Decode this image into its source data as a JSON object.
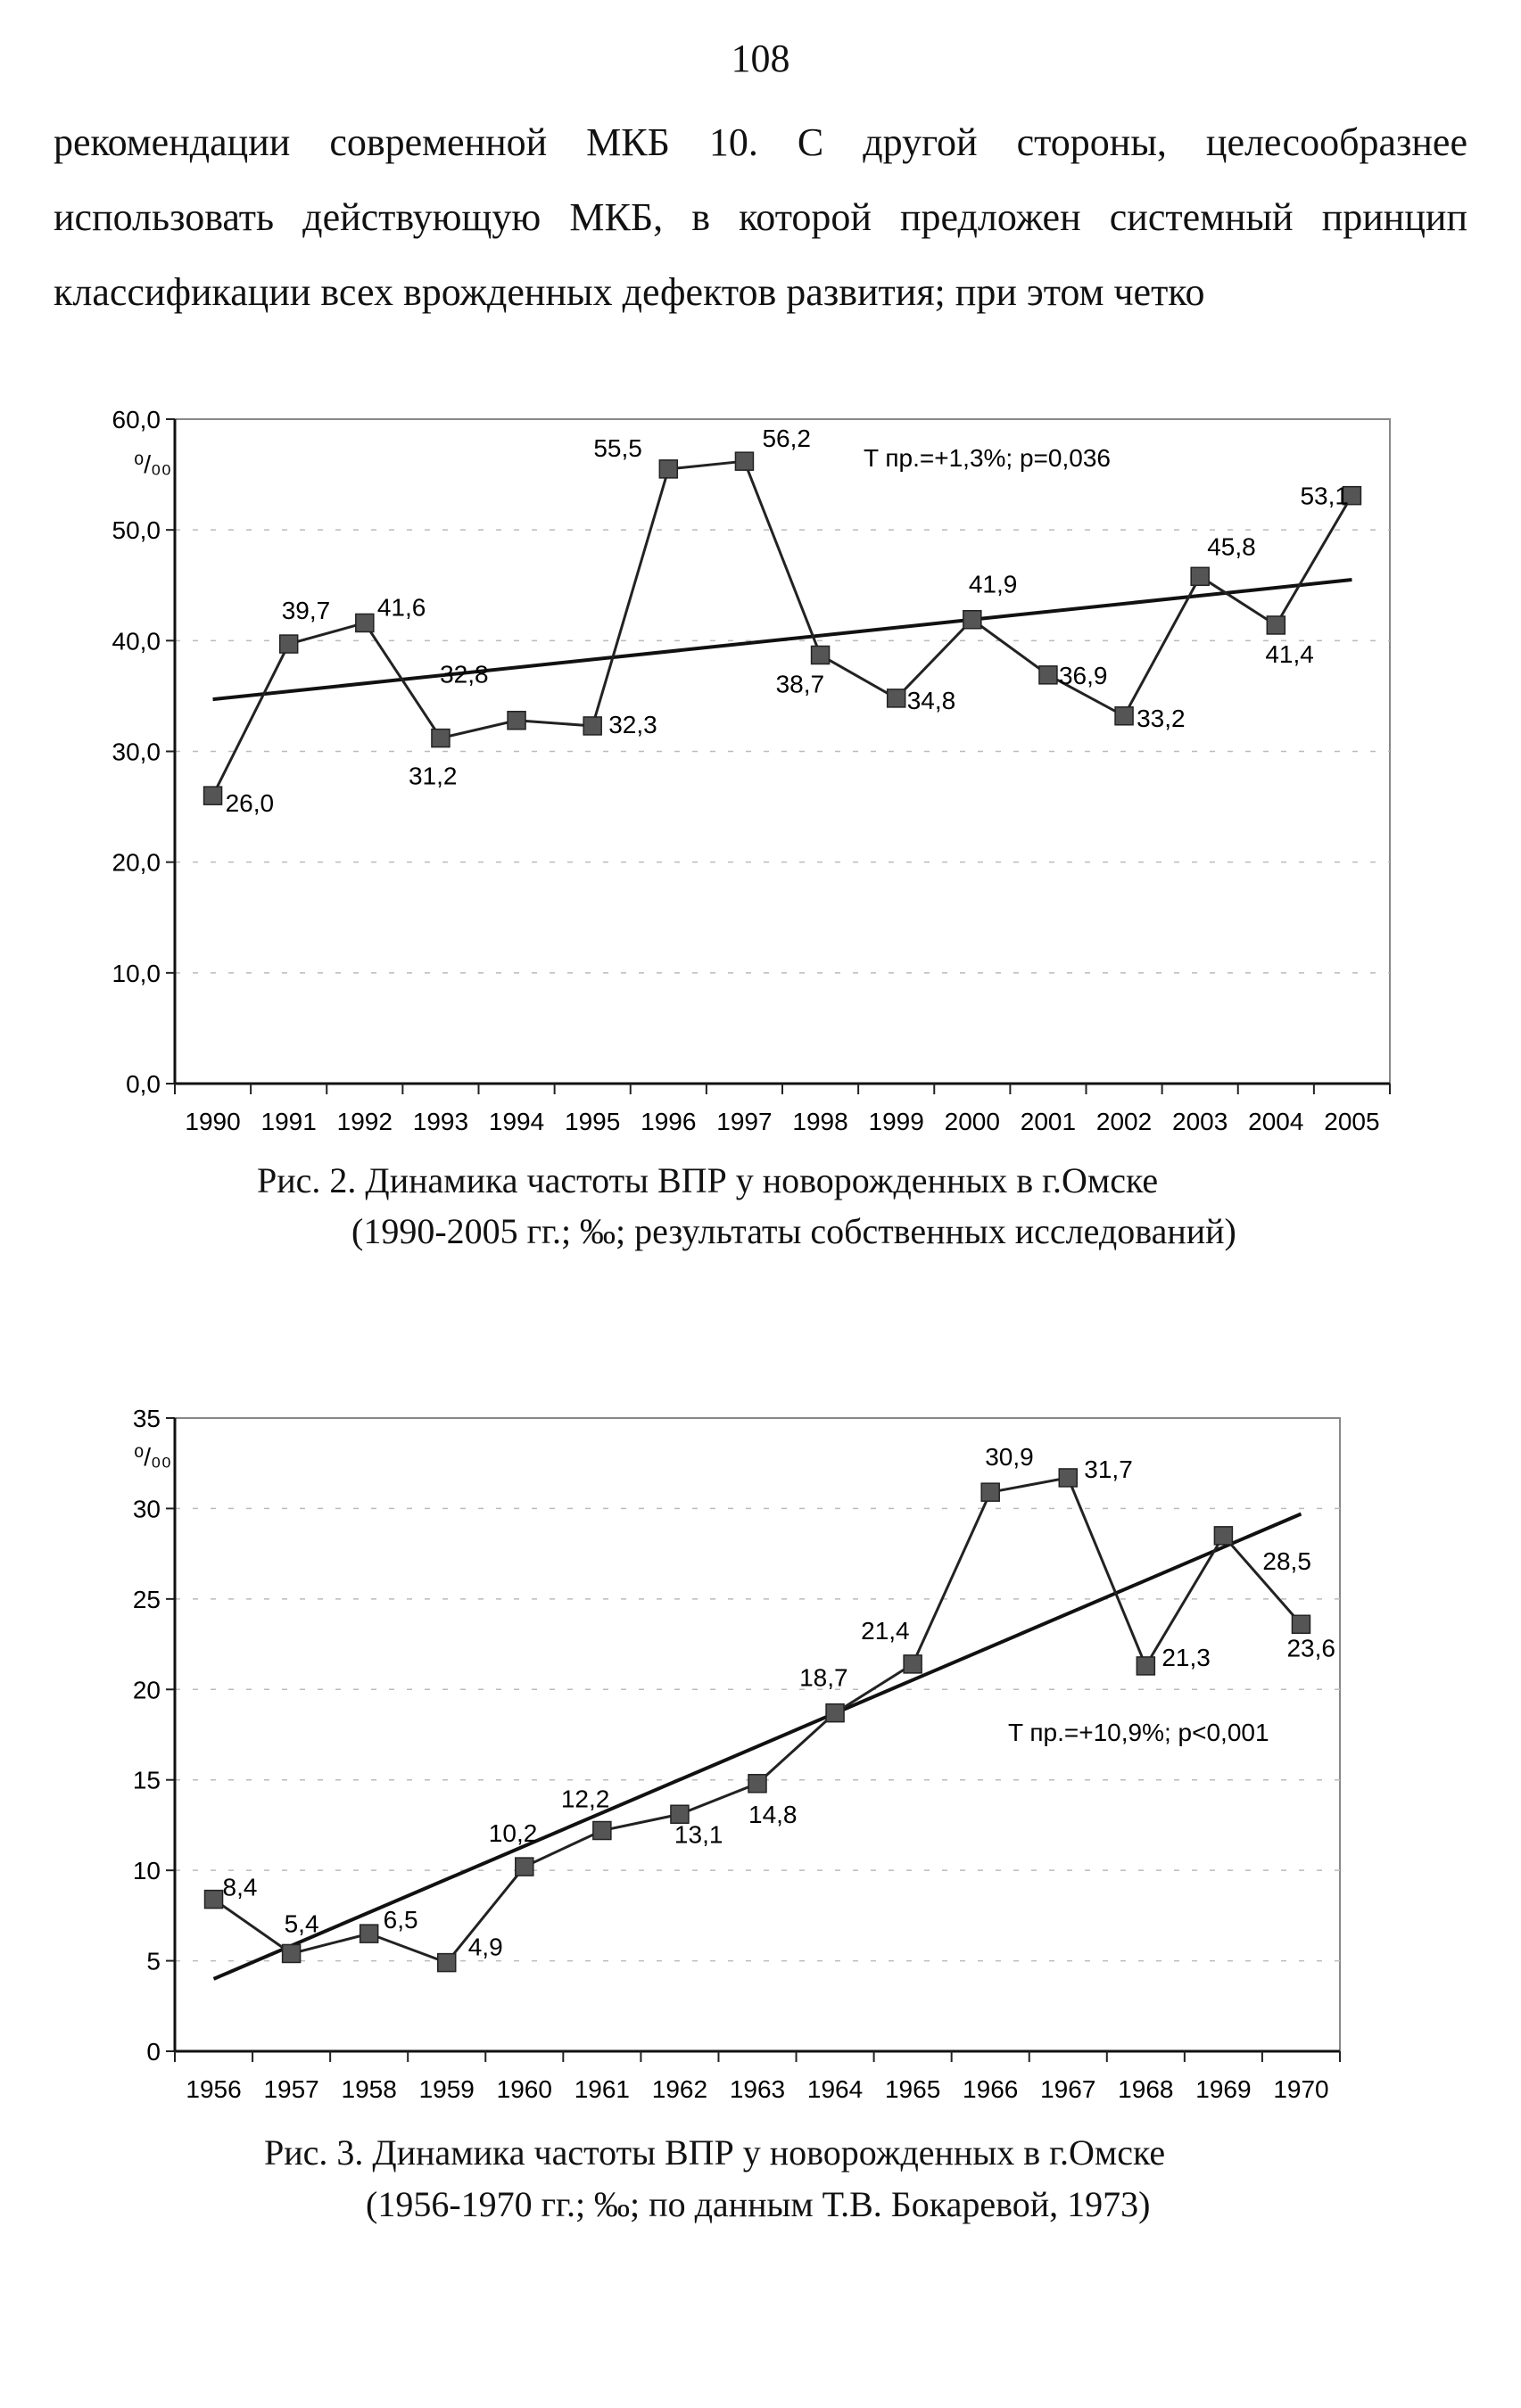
{
  "page": {
    "number": "108",
    "text_lines": [
      "рекомендации современной МКБ 10. С другой стороны, целесообразнее",
      "использовать действующую МКБ, в которой предложен системный принцип",
      "классификации всех врожденных дефектов развития; при этом четко"
    ]
  },
  "figures": [
    {
      "caption_line1": "Рис. 2. Динамика частоты ВПР у новорожденных в г.Омске",
      "caption_line2": "(1990-2005 гг.; ‰; результаты собственных исследований)"
    },
    {
      "caption_line1": "Рис. 3. Динамика частоты ВПР у новорожденных в г.Омске",
      "caption_line2": "(1956-1970 гг.; ‰; по данным Т.В. Бокаревой, 1973)"
    }
  ],
  "chart_data": [
    {
      "type": "line",
      "title": "",
      "ylabel": "⁰/₀₀",
      "ylim": [
        0,
        60
      ],
      "yticks": [
        0,
        10,
        20,
        30,
        40,
        50,
        60
      ],
      "ytick_labels": [
        "0,0",
        "10,0",
        "20,0",
        "30,0",
        "40,0",
        "50,0",
        "60,0"
      ],
      "x": [
        "1990",
        "1991",
        "1992",
        "1993",
        "1994",
        "1995",
        "1996",
        "1997",
        "1998",
        "1999",
        "2000",
        "2001",
        "2002",
        "2003",
        "2004",
        "2005"
      ],
      "series": [
        {
          "values": [
            26.0,
            39.7,
            41.6,
            31.2,
            32.8,
            32.3,
            55.5,
            56.2,
            38.7,
            34.8,
            41.9,
            36.9,
            33.2,
            45.8,
            41.4,
            53.1
          ],
          "labels": [
            "26,0",
            "39,7",
            "41,6",
            "31,2",
            "32,8",
            "32,3",
            "55,5",
            "56,2",
            "38,7",
            "34,8",
            "41,9",
            "36,9",
            "33,2",
            "45,8",
            "41,4",
            "53,1"
          ],
          "color": "#222222",
          "marker_color": "#555555"
        }
      ],
      "trend": {
        "start": 34.7,
        "end": 45.5,
        "color": "#111111"
      },
      "annotation": "T пр.=+1,3%; p=0,036",
      "grid": "dashed-horizontal"
    },
    {
      "type": "line",
      "title": "",
      "ylabel": "⁰/₀₀",
      "ylim": [
        0,
        35
      ],
      "yticks": [
        0,
        5,
        10,
        15,
        20,
        25,
        30,
        35
      ],
      "ytick_labels": [
        "0",
        "5",
        "10",
        "15",
        "20",
        "25",
        "30",
        "35"
      ],
      "x": [
        "1956",
        "1957",
        "1958",
        "1959",
        "1960",
        "1961",
        "1962",
        "1963",
        "1964",
        "1965",
        "1966",
        "1967",
        "1968",
        "1969",
        "1970"
      ],
      "series": [
        {
          "values": [
            8.4,
            5.4,
            6.5,
            4.9,
            10.2,
            12.2,
            13.1,
            14.8,
            18.7,
            21.4,
            30.9,
            31.7,
            21.3,
            28.5,
            23.6
          ],
          "labels": [
            "8,4",
            "5,4",
            "6,5",
            "4,9",
            "10,2",
            "12,2",
            "13,1",
            "14,8",
            "18,7",
            "21,4",
            "30,9",
            "31,7",
            "21,3",
            "28,5",
            "23,6"
          ],
          "color": "#222222",
          "marker_color": "#555555"
        }
      ],
      "trend": {
        "start": 4.0,
        "end": 29.7,
        "color": "#111111"
      },
      "annotation": "T пр.=+10,9%; p<0,001",
      "grid": "dashed-horizontal"
    }
  ]
}
